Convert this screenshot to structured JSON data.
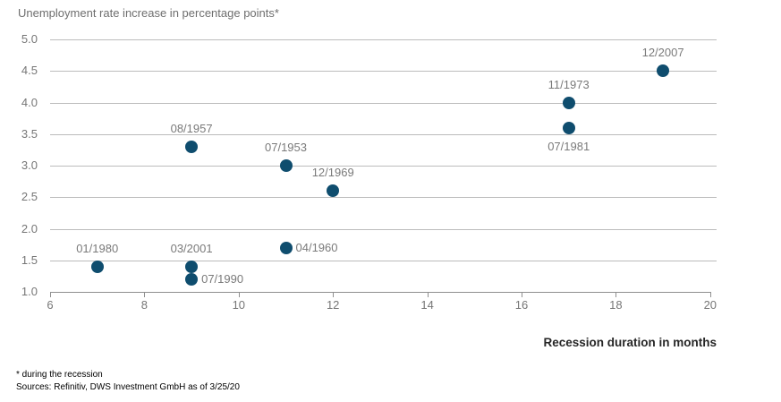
{
  "header": {
    "title": "Unemployment rate increase in percentage points*"
  },
  "chart_data": {
    "type": "scatter",
    "title": "Unemployment rate increase in percentage points*",
    "xlabel": "Recession duration in months",
    "ylabel": "Unemployment rate increase in percentage points",
    "xlim": [
      6,
      20
    ],
    "ylim": [
      1.0,
      5.0
    ],
    "x_ticks": [
      6,
      8,
      10,
      12,
      14,
      16,
      18,
      20
    ],
    "y_ticks": [
      5.0,
      4.5,
      4.0,
      3.5,
      3.0,
      2.5,
      2.0,
      1.5,
      1.0
    ],
    "grid": "horizontal",
    "legend": "none",
    "marker_color": "#0F4D6E",
    "points": [
      {
        "label": "01/1980",
        "x": 7,
        "y": 1.4,
        "label_pos": "above"
      },
      {
        "label": "07/1990",
        "x": 9,
        "y": 1.2,
        "label_pos": "right"
      },
      {
        "label": "03/2001",
        "x": 9,
        "y": 1.4,
        "label_pos": "above"
      },
      {
        "label": "04/1960",
        "x": 11,
        "y": 1.7,
        "label_pos": "right"
      },
      {
        "label": "12/1969",
        "x": 12,
        "y": 2.6,
        "label_pos": "above"
      },
      {
        "label": "07/1953",
        "x": 11,
        "y": 3.0,
        "label_pos": "above"
      },
      {
        "label": "08/1957",
        "x": 9,
        "y": 3.3,
        "label_pos": "above"
      },
      {
        "label": "07/1981",
        "x": 17,
        "y": 3.6,
        "label_pos": "below"
      },
      {
        "label": "11/1973",
        "x": 17,
        "y": 4.0,
        "label_pos": "above"
      },
      {
        "label": "12/2007",
        "x": 19,
        "y": 4.5,
        "label_pos": "above"
      }
    ]
  },
  "footer": {
    "footnote": "* during the recession",
    "sources": "Sources: Refinitiv, DWS Investment GmbH as of 3/25/20"
  },
  "colors": {
    "marker": "#0F4D6E",
    "gridline": "#bcbcbc",
    "axis": "#8f8f8f",
    "tick_text": "#767676",
    "title_text": "#6e6e6e",
    "xlabel_text": "#262626",
    "background": "#ffffff"
  }
}
